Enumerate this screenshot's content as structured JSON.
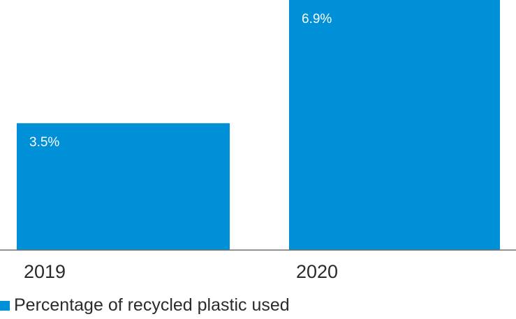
{
  "chart_data": {
    "type": "bar",
    "categories": [
      "2019",
      "2020"
    ],
    "series": [
      {
        "name": "Percentage of recycled plastic used",
        "values": [
          3.5,
          6.9
        ],
        "labels": [
          "3.5%",
          "6.9%"
        ]
      }
    ],
    "title": "",
    "xlabel": "",
    "ylabel": "",
    "ylim": [
      0,
      6.9
    ],
    "grid": false,
    "legend": "bottom-left",
    "colors": {
      "bar": "#0090d8",
      "axis": "#6e6e6e"
    }
  }
}
